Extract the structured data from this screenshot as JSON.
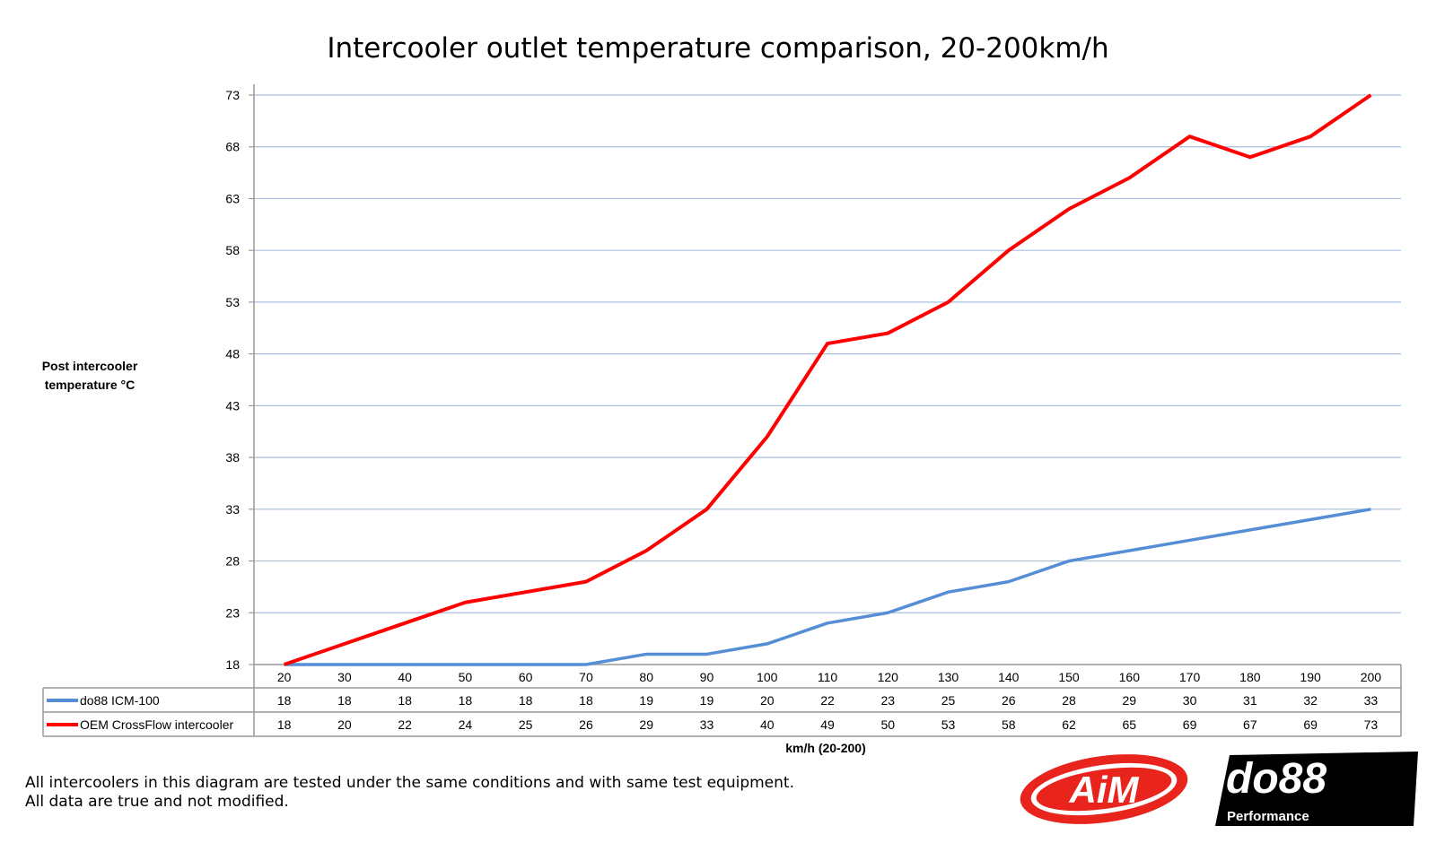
{
  "chart_data": {
    "type": "line",
    "title": "Intercooler outlet temperature comparison, 20-200km/h",
    "xlabel": "km/h (20-200)",
    "ylabel": "Post intercooler temperature °C",
    "categories": [
      20,
      30,
      40,
      50,
      60,
      70,
      80,
      90,
      100,
      110,
      120,
      130,
      140,
      150,
      160,
      170,
      180,
      190,
      200
    ],
    "yticks": [
      18,
      23,
      28,
      33,
      38,
      43,
      48,
      53,
      58,
      63,
      68,
      73
    ],
    "ylim": [
      18,
      73
    ],
    "grid": true,
    "legend": "data-table-left",
    "series": [
      {
        "name": "do88 ICM-100",
        "color": "#558ed5",
        "values": [
          18,
          18,
          18,
          18,
          18,
          18,
          19,
          19,
          20,
          22,
          23,
          25,
          26,
          28,
          29,
          30,
          31,
          32,
          33
        ]
      },
      {
        "name": "OEM CrossFlow intercooler",
        "color": "#ff0000",
        "values": [
          18,
          20,
          22,
          24,
          25,
          26,
          29,
          33,
          40,
          49,
          50,
          53,
          58,
          62,
          65,
          69,
          67,
          69,
          73
        ]
      }
    ]
  },
  "footnote": {
    "line1": "All intercoolers in this diagram are tested under the same conditions and with same test equipment.",
    "line2": "All data are true and not modified."
  },
  "logos": {
    "aim": "AiM",
    "do88": "do88",
    "do88_sub": "Performance"
  }
}
